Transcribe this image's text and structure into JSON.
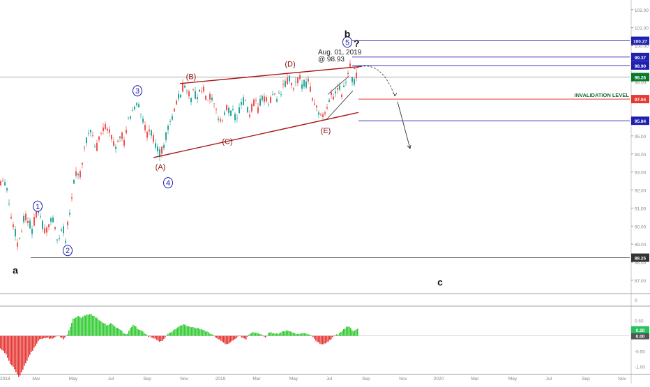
{
  "chart_data": {
    "type": "candlestick",
    "colors": {
      "up": "#26a69a",
      "down": "#ef5350",
      "wave_numbers": "#1a1aa8",
      "wave_letters": "#8b1010",
      "trendline": "#a81818",
      "level_blue": "#2020b0",
      "invalidation": "#e53935",
      "invalidation_text": "#1b6b3a",
      "hist_up": "#33cc33",
      "hist_down": "#e53935"
    },
    "price_panel": {
      "ylim": [
        86.3,
        102.3
      ],
      "y_ticks": [
        "87.00",
        "88.00",
        "89.00",
        "90.00",
        "91.00",
        "92.00",
        "93.00",
        "94.00",
        "95.00",
        "96.00",
        "97.00",
        "98.00",
        "99.00",
        "100.00",
        "101.00",
        "102.00"
      ],
      "x_ticks": [
        "2018",
        "Mar",
        "May",
        "Jul",
        "Sep",
        "Nov",
        "2019",
        "Mar",
        "May",
        "Jul",
        "Sep",
        "Nov",
        "2020",
        "Mar",
        "May",
        "Jul",
        "Sep",
        "Nov"
      ],
      "series_anchors": [
        [
          0,
          92.5
        ],
        [
          6,
          92.7
        ],
        [
          10,
          92.0
        ],
        [
          14,
          91.0
        ],
        [
          18,
          90.2
        ],
        [
          22,
          89.6
        ],
        [
          26,
          88.9
        ],
        [
          30,
          89.7
        ],
        [
          34,
          90.4
        ],
        [
          38,
          90.6
        ],
        [
          42,
          90.2
        ],
        [
          46,
          89.8
        ],
        [
          50,
          90.4
        ],
        [
          54,
          91.1
        ],
        [
          58,
          90.3
        ],
        [
          62,
          90.0
        ],
        [
          66,
          89.6
        ],
        [
          70,
          90.1
        ],
        [
          74,
          90.5
        ],
        [
          78,
          90.0
        ],
        [
          82,
          89.2
        ],
        [
          86,
          89.5
        ],
        [
          90,
          89.9
        ],
        [
          94,
          89.3
        ],
        [
          98,
          90.5
        ],
        [
          102,
          91.3
        ],
        [
          106,
          92.4
        ],
        [
          110,
          93.2
        ],
        [
          114,
          92.7
        ],
        [
          118,
          93.5
        ],
        [
          122,
          94.3
        ],
        [
          126,
          95.1
        ],
        [
          130,
          95.3
        ],
        [
          134,
          94.8
        ],
        [
          138,
          94.2
        ],
        [
          142,
          94.9
        ],
        [
          146,
          95.3
        ],
        [
          150,
          95.6
        ],
        [
          154,
          95.3
        ],
        [
          158,
          95.2
        ],
        [
          162,
          94.7
        ],
        [
          166,
          94.4
        ],
        [
          170,
          95.1
        ],
        [
          174,
          95.2
        ],
        [
          178,
          94.6
        ],
        [
          182,
          95.6
        ],
        [
          186,
          96.0
        ],
        [
          190,
          96.3
        ],
        [
          194,
          96.7
        ],
        [
          198,
          96.9
        ],
        [
          202,
          96.1
        ],
        [
          206,
          95.6
        ],
        [
          210,
          95.1
        ],
        [
          214,
          95.3
        ],
        [
          218,
          95.0
        ],
        [
          222,
          94.6
        ],
        [
          226,
          94.3
        ],
        [
          230,
          93.9
        ],
        [
          234,
          94.4
        ],
        [
          238,
          95.0
        ],
        [
          242,
          95.4
        ],
        [
          246,
          95.9
        ],
        [
          250,
          96.4
        ],
        [
          254,
          96.9
        ],
        [
          258,
          97.3
        ],
        [
          262,
          97.7
        ],
        [
          266,
          97.9
        ],
        [
          270,
          97.4
        ],
        [
          274,
          97.0
        ],
        [
          278,
          97.5
        ],
        [
          282,
          97.1
        ],
        [
          286,
          97.3
        ],
        [
          290,
          97.6
        ],
        [
          294,
          97.3
        ],
        [
          298,
          97.0
        ],
        [
          302,
          97.1
        ],
        [
          306,
          96.6
        ],
        [
          310,
          96.3
        ],
        [
          314,
          96.0
        ],
        [
          318,
          95.8
        ],
        [
          322,
          96.2
        ],
        [
          326,
          96.6
        ],
        [
          330,
          96.2
        ],
        [
          334,
          96.4
        ],
        [
          338,
          96.0
        ],
        [
          342,
          96.2
        ],
        [
          346,
          96.7
        ],
        [
          350,
          97.0
        ],
        [
          354,
          96.5
        ],
        [
          358,
          96.2
        ],
        [
          362,
          96.7
        ],
        [
          366,
          96.8
        ],
        [
          370,
          96.4
        ],
        [
          374,
          96.9
        ],
        [
          378,
          97.2
        ],
        [
          382,
          96.9
        ],
        [
          386,
          96.8
        ],
        [
          390,
          97.2
        ],
        [
          394,
          97.4
        ],
        [
          398,
          97.1
        ],
        [
          402,
          97.3
        ],
        [
          406,
          97.6
        ],
        [
          410,
          97.9
        ],
        [
          414,
          98.2
        ],
        [
          418,
          97.8
        ],
        [
          422,
          97.6
        ],
        [
          426,
          98.0
        ],
        [
          430,
          98.1
        ],
        [
          434,
          97.8
        ],
        [
          438,
          97.9
        ],
        [
          442,
          98.1
        ],
        [
          446,
          97.5
        ],
        [
          450,
          97.0
        ],
        [
          454,
          96.6
        ],
        [
          458,
          96.2
        ],
        [
          462,
          95.9
        ],
        [
          466,
          96.1
        ],
        [
          470,
          96.7
        ],
        [
          474,
          97.4
        ],
        [
          478,
          97.2
        ],
        [
          482,
          97.7
        ],
        [
          486,
          97.9
        ],
        [
          490,
          97.4
        ],
        [
          494,
          97.9
        ],
        [
          498,
          98.4
        ],
        [
          502,
          98.9
        ],
        [
          504,
          98.5
        ],
        [
          506,
          97.7
        ],
        [
          508,
          98.0
        ],
        [
          510,
          98.3
        ],
        [
          513,
          98.3
        ]
      ],
      "osc_anchors": [
        [
          0,
          -0.4
        ],
        [
          8,
          -0.6
        ],
        [
          14,
          -0.9
        ],
        [
          20,
          -1.1
        ],
        [
          26,
          -1.35
        ],
        [
          30,
          -1.2
        ],
        [
          36,
          -0.9
        ],
        [
          42,
          -0.6
        ],
        [
          48,
          -0.4
        ],
        [
          54,
          -0.15
        ],
        [
          60,
          -0.1
        ],
        [
          66,
          -0.05
        ],
        [
          72,
          -0.1
        ],
        [
          78,
          -0.05
        ],
        [
          84,
          0.0
        ],
        [
          90,
          -0.1
        ],
        [
          96,
          0.05
        ],
        [
          100,
          0.3
        ],
        [
          104,
          0.55
        ],
        [
          110,
          0.65
        ],
        [
          116,
          0.6
        ],
        [
          122,
          0.68
        ],
        [
          128,
          0.72
        ],
        [
          134,
          0.65
        ],
        [
          140,
          0.55
        ],
        [
          146,
          0.45
        ],
        [
          152,
          0.35
        ],
        [
          158,
          0.4
        ],
        [
          164,
          0.3
        ],
        [
          170,
          0.22
        ],
        [
          176,
          0.1
        ],
        [
          182,
          0.05
        ],
        [
          186,
          0.25
        ],
        [
          190,
          0.35
        ],
        [
          194,
          0.3
        ],
        [
          198,
          0.2
        ],
        [
          202,
          0.18
        ],
        [
          206,
          0.1
        ],
        [
          210,
          0.0
        ],
        [
          216,
          -0.05
        ],
        [
          222,
          -0.1
        ],
        [
          228,
          -0.18
        ],
        [
          232,
          -0.15
        ],
        [
          236,
          -0.05
        ],
        [
          240,
          0.08
        ],
        [
          246,
          0.12
        ],
        [
          252,
          0.25
        ],
        [
          258,
          0.35
        ],
        [
          264,
          0.38
        ],
        [
          270,
          0.3
        ],
        [
          276,
          0.28
        ],
        [
          282,
          0.25
        ],
        [
          288,
          0.2
        ],
        [
          294,
          0.15
        ],
        [
          300,
          0.08
        ],
        [
          306,
          0.0
        ],
        [
          312,
          -0.1
        ],
        [
          318,
          -0.2
        ],
        [
          324,
          -0.28
        ],
        [
          330,
          -0.2
        ],
        [
          336,
          -0.1
        ],
        [
          342,
          0.0
        ],
        [
          346,
          -0.05
        ],
        [
          352,
          -0.1
        ],
        [
          356,
          0.05
        ],
        [
          362,
          0.12
        ],
        [
          368,
          0.1
        ],
        [
          374,
          0.05
        ],
        [
          380,
          -0.05
        ],
        [
          384,
          0.08
        ],
        [
          388,
          0.12
        ],
        [
          394,
          0.05
        ],
        [
          400,
          0.1
        ],
        [
          406,
          0.15
        ],
        [
          412,
          0.18
        ],
        [
          418,
          0.1
        ],
        [
          424,
          0.05
        ],
        [
          430,
          0.08
        ],
        [
          436,
          0.1
        ],
        [
          442,
          0.05
        ],
        [
          448,
          -0.05
        ],
        [
          454,
          -0.2
        ],
        [
          460,
          -0.28
        ],
        [
          466,
          -0.25
        ],
        [
          472,
          -0.15
        ],
        [
          478,
          0.0
        ],
        [
          484,
          0.05
        ],
        [
          490,
          0.15
        ],
        [
          494,
          0.25
        ],
        [
          498,
          0.3
        ],
        [
          502,
          0.25
        ],
        [
          506,
          0.15
        ],
        [
          510,
          0.2
        ],
        [
          513,
          0.22
        ]
      ],
      "osc_ylim": [
        -1.15,
        0.95
      ],
      "osc_ticks": [
        "0.50",
        "-0.50",
        "-1.00"
      ],
      "osc_zero_label": "0.00",
      "osc_value_label": "0.20"
    },
    "level_tags": [
      {
        "id": "lvl-100-27",
        "label": "100.27",
        "price": 100.27,
        "color": "#2020b0",
        "line": true
      },
      {
        "id": "lvl-99-37",
        "label": "99.37",
        "price": 99.37,
        "color": "#2020b0",
        "line": true
      },
      {
        "id": "lvl-98-90",
        "label": "98.90",
        "price": 98.9,
        "color": "#2020b0",
        "line": true
      },
      {
        "id": "lvl-98-26",
        "label": "98.26",
        "price": 98.26,
        "color": "#0a7a2a",
        "line": true,
        "grey": true
      },
      {
        "id": "lvl-97-04",
        "label": "97.04",
        "price": 97.04,
        "color": "#e53935",
        "line": true
      },
      {
        "id": "lvl-95-84",
        "label": "95.84",
        "price": 95.84,
        "color": "#2020b0",
        "line": true
      },
      {
        "id": "lvl-88-25",
        "label": "88.25",
        "price": 88.25,
        "color": "#333333",
        "line": true
      }
    ],
    "osc_top_tag": "0",
    "wave_numbers": [
      {
        "label": "1",
        "x": 54,
        "p": 91.1
      },
      {
        "label": "2",
        "x": 97,
        "p": 88.65
      },
      {
        "label": "3",
        "x": 197,
        "p": 97.5
      },
      {
        "label": "4",
        "x": 241,
        "p": 92.4
      },
      {
        "label": "5",
        "x": 498,
        "p": 100.2
      }
    ],
    "wave_letters": [
      {
        "label": "(A)",
        "x": 230,
        "p": 93.3
      },
      {
        "label": "(B)",
        "x": 274,
        "p": 98.3
      },
      {
        "label": "(C)",
        "x": 326,
        "p": 94.7
      },
      {
        "label": "(D)",
        "x": 416,
        "p": 99.0
      },
      {
        "label": "(E)",
        "x": 467,
        "p": 95.3
      }
    ],
    "big_letters": [
      {
        "label": "a",
        "x": 22,
        "p": 87.55
      },
      {
        "label": "b",
        "x": 498,
        "p": 100.65
      },
      {
        "label": "c",
        "x": 631,
        "p": 86.9
      }
    ],
    "question_mark": "?",
    "annotation_date": "Aug. 01, 2019",
    "annotation_price": "@ 98.93",
    "invalidation_label": "INVALIDATION LEVEL"
  }
}
